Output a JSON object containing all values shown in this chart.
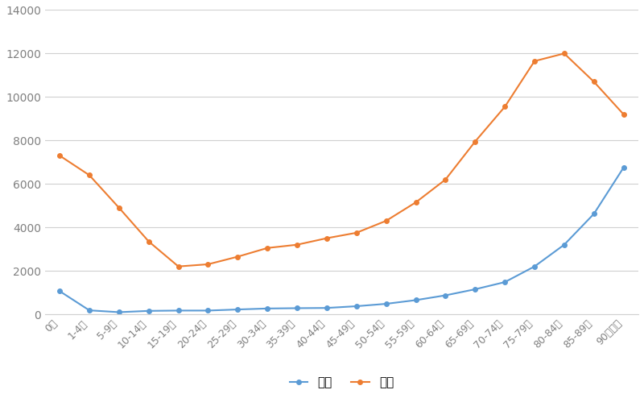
{
  "categories": [
    "0歳",
    "1-4歳",
    "5-9歳",
    "10-14歳",
    "15-19歳",
    "20-24歳",
    "25-29歳",
    "30-34歳",
    "35-39歳",
    "40-44歳",
    "45-49歳",
    "50-54歳",
    "55-59歳",
    "60-64歳",
    "65-69歳",
    "70-74歳",
    "75-79歳",
    "80-84歳",
    "85-89歳",
    "90歳以上"
  ],
  "inpatient": [
    1063,
    180,
    95,
    155,
    170,
    170,
    220,
    265,
    280,
    290,
    370,
    480,
    650,
    870,
    1150,
    1480,
    2200,
    3200,
    4620,
    6750
  ],
  "outpatient": [
    7300,
    6400,
    4900,
    3350,
    2200,
    2300,
    2650,
    3050,
    3200,
    3500,
    3750,
    4300,
    5150,
    6200,
    7950,
    9550,
    11650,
    12000,
    10700,
    9200
  ],
  "inpatient_color": "#5B9BD5",
  "outpatient_color": "#ED7D31",
  "inpatient_label": "入院",
  "outpatient_label": "外来",
  "ylim": [
    0,
    14000
  ],
  "yticks": [
    0,
    2000,
    4000,
    6000,
    8000,
    10000,
    12000,
    14000
  ],
  "background_color": "#ffffff",
  "grid_color": "#d0d0d0",
  "marker": "o",
  "marker_size": 4,
  "line_width": 1.5,
  "tick_color": "#808080",
  "axis_label_fontsize": 9,
  "ytick_fontsize": 10,
  "legend_fontsize": 11
}
